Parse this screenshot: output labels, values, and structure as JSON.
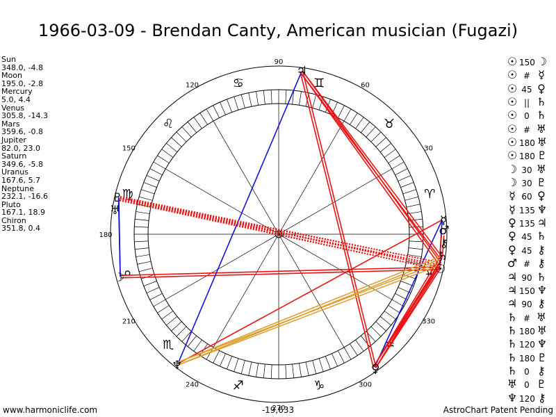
{
  "title": "1966-03-09 - Brendan Canty, American musician (Fugazi)",
  "footer": {
    "left": "www.harmoniclife.com",
    "center": "-19,633",
    "right": "AstroChart Patent Pending"
  },
  "colors": {
    "hard_aspect": "#ee1111",
    "soft_aspect": "#1111dd",
    "minor_aspect": "#dda030",
    "ring": "#000000",
    "spoke": "#000000"
  },
  "chart_data": {
    "type": "astrological-wheel",
    "title": "1966-03-09 - Brendan Canty, American musician (Fugazi)",
    "degree_labels": [
      "90",
      "60",
      "30",
      "330",
      "300",
      "270",
      "240",
      "210",
      "180",
      "150",
      "120"
    ],
    "degree_label_values": [
      90,
      60,
      30,
      330,
      300,
      270,
      240,
      210,
      180,
      150,
      120
    ],
    "zodiac_signs": [
      {
        "glyph": "♈",
        "start": 0
      },
      {
        "glyph": "♉",
        "start": 30
      },
      {
        "glyph": "♊",
        "start": 60
      },
      {
        "glyph": "♋",
        "start": 90
      },
      {
        "glyph": "♌",
        "start": 120
      },
      {
        "glyph": "♍",
        "start": 150
      },
      {
        "glyph": "♎",
        "start": 180
      },
      {
        "glyph": "♏",
        "start": 210
      },
      {
        "glyph": "♐",
        "start": 240
      },
      {
        "glyph": "♑",
        "start": 270
      },
      {
        "glyph": "♒",
        "start": 300
      },
      {
        "glyph": "♓",
        "start": 330
      }
    ],
    "planets": [
      {
        "name": "Sun",
        "glyph": "☉",
        "longitude": 348.0,
        "latitude": -4.8,
        "pos_text": "348.0, -4.8"
      },
      {
        "name": "Moon",
        "glyph": "☽",
        "longitude": 195.0,
        "latitude": -2.8,
        "pos_text": "195.0, -2.8"
      },
      {
        "name": "Mercury",
        "glyph": "☿",
        "longitude": 5.0,
        "latitude": 4.4,
        "pos_text": "5.0, 4.4"
      },
      {
        "name": "Venus",
        "glyph": "♀",
        "longitude": 305.8,
        "latitude": -14.3,
        "pos_text": "305.8, -14.3"
      },
      {
        "name": "Mars",
        "glyph": "♂",
        "longitude": 359.6,
        "latitude": -0.8,
        "pos_text": "359.6, -0.8"
      },
      {
        "name": "Jupiter",
        "glyph": "♃",
        "longitude": 82.0,
        "latitude": 23.0,
        "pos_text": "82.0, 23.0"
      },
      {
        "name": "Saturn",
        "glyph": "♄",
        "longitude": 349.6,
        "latitude": -5.8,
        "pos_text": "349.6, -5.8"
      },
      {
        "name": "Uranus",
        "glyph": "♅",
        "longitude": 167.6,
        "latitude": 5.7,
        "pos_text": "167.6, 5.7"
      },
      {
        "name": "Neptune",
        "glyph": "♆",
        "longitude": 232.1,
        "latitude": -16.6,
        "pos_text": "232.1, -16.6"
      },
      {
        "name": "Pluto",
        "glyph": "♇",
        "longitude": 167.1,
        "latitude": 18.9,
        "pos_text": "167.1, 18.9"
      },
      {
        "name": "Chiron",
        "glyph": "⚷",
        "longitude": 351.8,
        "latitude": 0.4,
        "pos_text": "351.8, 0.4"
      }
    ],
    "aspects": [
      {
        "p1": "Sun",
        "p1_glyph": "☉",
        "aspect": "150",
        "p2": "Moon",
        "p2_glyph": "☽",
        "kind": "hard",
        "style": "double"
      },
      {
        "p1": "Sun",
        "p1_glyph": "☉",
        "aspect": "#",
        "p2": "Mercury",
        "p2_glyph": "☿",
        "kind": "soft",
        "style": "single"
      },
      {
        "p1": "Sun",
        "p1_glyph": "☉",
        "aspect": "45",
        "p2": "Venus",
        "p2_glyph": "♀",
        "kind": "hard",
        "style": "double"
      },
      {
        "p1": "Sun",
        "p1_glyph": "☉",
        "aspect": "||",
        "p2": "Saturn",
        "p2_glyph": "♄",
        "kind": "soft",
        "style": "single"
      },
      {
        "p1": "Sun",
        "p1_glyph": "☉",
        "aspect": "0",
        "p2": "Saturn",
        "p2_glyph": "♄",
        "kind": "soft",
        "style": "single"
      },
      {
        "p1": "Sun",
        "p1_glyph": "☉",
        "aspect": "#",
        "p2": "Uranus",
        "p2_glyph": "♅",
        "kind": "hard",
        "style": "dotted"
      },
      {
        "p1": "Sun",
        "p1_glyph": "☉",
        "aspect": "180",
        "p2": "Uranus",
        "p2_glyph": "♅",
        "kind": "hard",
        "style": "dotted"
      },
      {
        "p1": "Sun",
        "p1_glyph": "☉",
        "aspect": "180",
        "p2": "Pluto",
        "p2_glyph": "♇",
        "kind": "hard",
        "style": "dotted"
      },
      {
        "p1": "Moon",
        "p1_glyph": "☽",
        "aspect": "30",
        "p2": "Uranus",
        "p2_glyph": "♅",
        "kind": "soft",
        "style": "single"
      },
      {
        "p1": "Moon",
        "p1_glyph": "☽",
        "aspect": "30",
        "p2": "Pluto",
        "p2_glyph": "♇",
        "kind": "soft",
        "style": "single"
      },
      {
        "p1": "Mercury",
        "p1_glyph": "☿",
        "aspect": "60",
        "p2": "Venus",
        "p2_glyph": "♀",
        "kind": "soft",
        "style": "single"
      },
      {
        "p1": "Mercury",
        "p1_glyph": "☿",
        "aspect": "135",
        "p2": "Neptune",
        "p2_glyph": "♆",
        "kind": "hard",
        "style": "single"
      },
      {
        "p1": "Venus",
        "p1_glyph": "♀",
        "aspect": "135",
        "p2": "Jupiter",
        "p2_glyph": "♃",
        "kind": "hard",
        "style": "double"
      },
      {
        "p1": "Venus",
        "p1_glyph": "♀",
        "aspect": "45",
        "p2": "Saturn",
        "p2_glyph": "♄",
        "kind": "hard",
        "style": "double"
      },
      {
        "p1": "Venus",
        "p1_glyph": "♀",
        "aspect": "45",
        "p2": "Chiron",
        "p2_glyph": "⚷",
        "kind": "hard",
        "style": "double"
      },
      {
        "p1": "Mars",
        "p1_glyph": "♂",
        "aspect": "#",
        "p2": "Chiron",
        "p2_glyph": "⚷",
        "kind": "hard",
        "style": "double"
      },
      {
        "p1": "Jupiter",
        "p1_glyph": "♃",
        "aspect": "90",
        "p2": "Saturn",
        "p2_glyph": "♄",
        "kind": "hard",
        "style": "double"
      },
      {
        "p1": "Jupiter",
        "p1_glyph": "♃",
        "aspect": "150",
        "p2": "Neptune",
        "p2_glyph": "♆",
        "kind": "soft",
        "style": "single"
      },
      {
        "p1": "Jupiter",
        "p1_glyph": "♃",
        "aspect": "90",
        "p2": "Chiron",
        "p2_glyph": "⚷",
        "kind": "hard",
        "style": "double"
      },
      {
        "p1": "Saturn",
        "p1_glyph": "♄",
        "aspect": "#",
        "p2": "Uranus",
        "p2_glyph": "♅",
        "kind": "hard",
        "style": "dotted"
      },
      {
        "p1": "Saturn",
        "p1_glyph": "♄",
        "aspect": "180",
        "p2": "Uranus",
        "p2_glyph": "♅",
        "kind": "hard",
        "style": "dotted"
      },
      {
        "p1": "Saturn",
        "p1_glyph": "♄",
        "aspect": "120",
        "p2": "Neptune",
        "p2_glyph": "♆",
        "kind": "minor",
        "style": "double"
      },
      {
        "p1": "Saturn",
        "p1_glyph": "♄",
        "aspect": "180",
        "p2": "Pluto",
        "p2_glyph": "♇",
        "kind": "hard",
        "style": "dotted"
      },
      {
        "p1": "Saturn",
        "p1_glyph": "♄",
        "aspect": "0",
        "p2": "Chiron",
        "p2_glyph": "⚷",
        "kind": "soft",
        "style": "single"
      },
      {
        "p1": "Uranus",
        "p1_glyph": "♅",
        "aspect": "0",
        "p2": "Pluto",
        "p2_glyph": "♇",
        "kind": "soft",
        "style": "single"
      },
      {
        "p1": "Neptune",
        "p1_glyph": "♆",
        "aspect": "120",
        "p2": "Chiron",
        "p2_glyph": "⚷",
        "kind": "minor",
        "style": "double"
      }
    ]
  }
}
